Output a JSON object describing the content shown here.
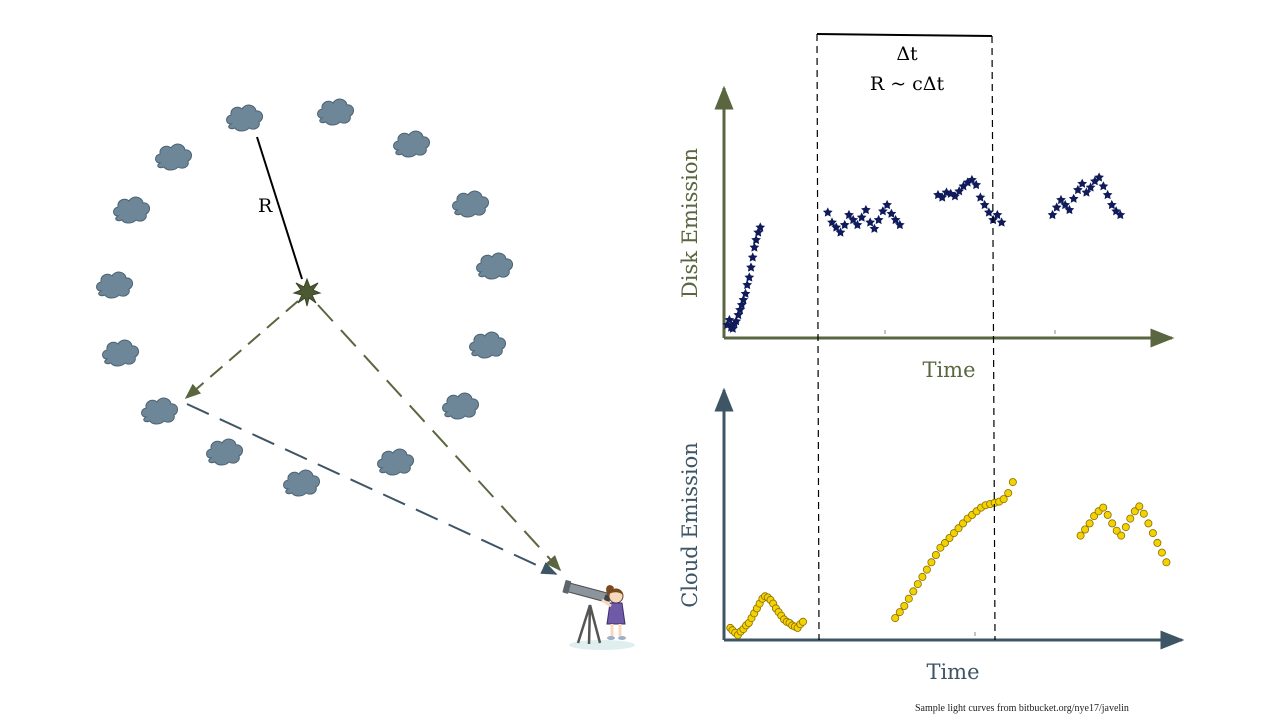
{
  "labels": {
    "radius": "R",
    "delta_t": "Δt",
    "relation": "R ~ cΔt",
    "credit": "Sample light curves from bitbucket.org/nye17/javelin"
  },
  "colors": {
    "cloud": "#6d8799",
    "cloud_stroke": "#4b6373",
    "olive": "#5a6640",
    "slate": "#3e5566",
    "disk_points": "#0f1b5a",
    "cloud_points": "#f2d200",
    "cloud_points_stroke": "#8a6d00"
  },
  "icons": [
    "cloud-icon",
    "star-icon",
    "telescope-icon",
    "observer-girl-icon"
  ],
  "chart_data": [
    {
      "type": "scatter",
      "title": "",
      "xlabel": "Time",
      "ylabel": "Disk Emission",
      "series": [
        {
          "x": [
            0.3,
            0.8,
            1.2,
            1.6,
            2.0,
            2.4,
            2.9,
            3.3,
            3.7,
            4.1,
            4.6,
            5.0,
            5.5,
            5.9,
            6.3,
            6.7,
            7.1,
            7.6,
            8.1
          ],
          "y": [
            0.8,
            1.2,
            0.6,
            0.5,
            0.9,
            1.1,
            1.6,
            2.0,
            2.4,
            2.8,
            3.3,
            4.0,
            4.6,
            5.4,
            6.2,
            7.0,
            7.6,
            8.2,
            8.6
          ]
        },
        {
          "x": [
            24,
            25,
            26,
            27,
            28,
            29,
            30,
            31,
            32,
            33,
            34,
            35,
            36,
            37,
            38,
            39,
            40,
            41
          ],
          "y": [
            9.8,
            9.0,
            8.6,
            8.2,
            8.8,
            9.6,
            9.2,
            8.8,
            9.4,
            10.0,
            9.0,
            8.5,
            9.2,
            9.9,
            10.4,
            9.7,
            9.2,
            8.8
          ]
        },
        {
          "x": [
            50,
            51,
            52,
            53,
            54,
            55,
            56,
            57,
            58,
            59,
            60,
            61,
            62,
            63,
            64,
            65
          ],
          "y": [
            11.2,
            11.0,
            11.4,
            11.3,
            11.1,
            11.5,
            11.9,
            12.2,
            12.4,
            12.0,
            11.0,
            10.4,
            9.8,
            9.2,
            9.6,
            9.0
          ]
        },
        {
          "x": [
            77,
            78,
            79,
            80,
            81,
            82,
            83,
            84,
            85,
            86,
            87,
            88,
            89,
            90,
            91,
            92,
            93
          ],
          "y": [
            9.6,
            10.2,
            10.8,
            10.4,
            10.0,
            10.9,
            11.6,
            12.1,
            11.4,
            11.8,
            12.3,
            12.6,
            11.9,
            11.2,
            10.4,
            9.9,
            9.6
          ]
        }
      ]
    },
    {
      "type": "scatter",
      "title": "",
      "xlabel": "Time",
      "ylabel": "Cloud Emission",
      "series": [
        {
          "x": [
            0.5,
            1.0,
            1.6,
            2.2,
            2.8,
            3.4,
            4.0,
            4.6,
            5.2,
            5.8,
            6.4,
            7.0,
            7.6,
            8.2,
            8.8,
            9.4,
            10.0,
            10.6,
            11.2,
            11.8,
            12.4,
            13.0,
            13.6,
            14.2,
            14.8,
            15.4,
            16.0,
            16.6
          ],
          "y": [
            1.0,
            0.8,
            0.6,
            0.4,
            0.7,
            0.9,
            1.2,
            1.4,
            1.8,
            2.2,
            2.6,
            3.0,
            3.4,
            3.6,
            3.5,
            3.3,
            3.0,
            2.6,
            2.3,
            2.0,
            1.7,
            1.5,
            1.4,
            1.2,
            1.1,
            1.0,
            1.3,
            1.5
          ]
        },
        {
          "x": [
            37,
            38,
            39,
            40,
            41,
            42,
            43,
            44,
            45,
            46,
            47,
            48,
            49,
            50,
            51,
            52,
            53,
            54,
            55,
            56,
            57,
            58,
            59,
            60,
            61,
            62,
            63
          ],
          "y": [
            1.8,
            2.3,
            2.8,
            3.4,
            4.0,
            4.6,
            5.2,
            5.8,
            6.4,
            7.0,
            7.6,
            8.0,
            8.4,
            8.8,
            9.2,
            9.6,
            10.0,
            10.3,
            10.6,
            10.9,
            11.1,
            11.2,
            11.3,
            11.4,
            11.6,
            12.1,
            13.0
          ]
        },
        {
          "x": [
            78,
            79,
            80,
            81,
            82,
            83,
            84,
            85,
            86,
            87,
            88,
            89,
            90,
            91,
            92,
            93,
            94,
            95,
            96,
            97
          ],
          "y": [
            8.6,
            9.1,
            9.6,
            10.2,
            10.6,
            10.9,
            10.3,
            9.6,
            9.0,
            8.6,
            9.3,
            10.0,
            10.6,
            11.0,
            10.4,
            9.6,
            8.8,
            8.0,
            7.2,
            6.4
          ]
        }
      ]
    }
  ]
}
